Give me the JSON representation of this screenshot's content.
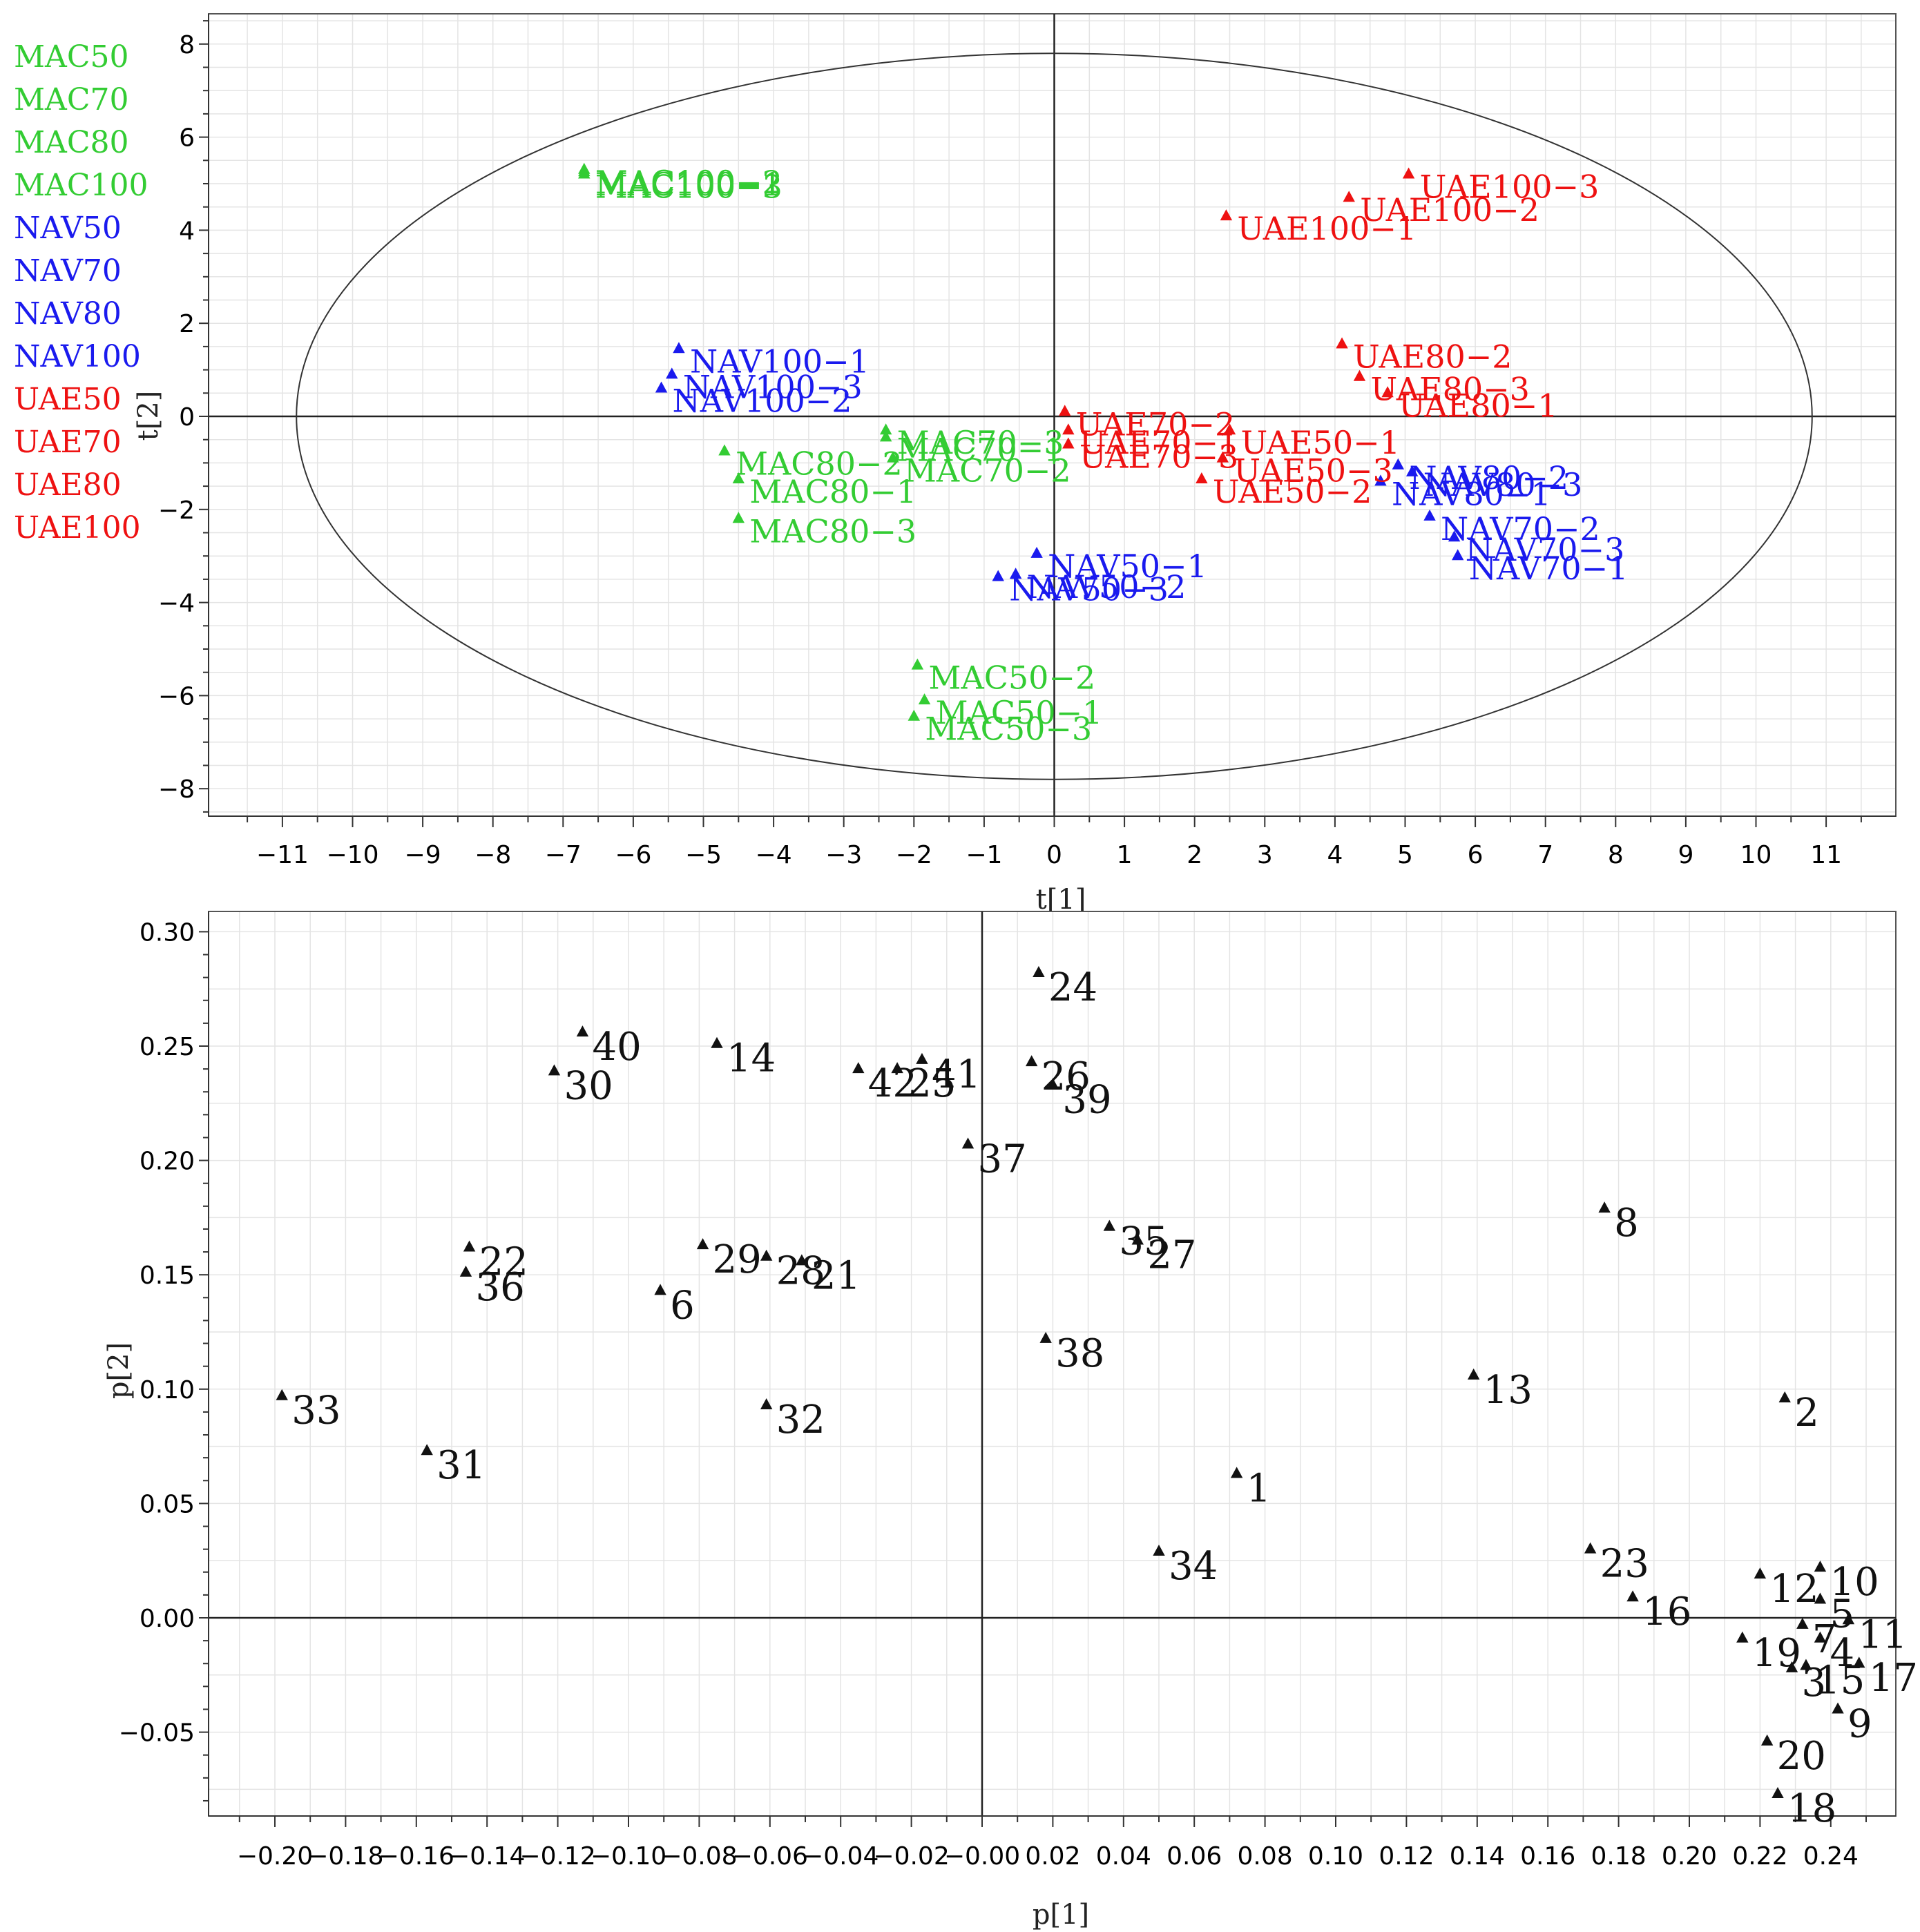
{
  "colors": {
    "MAC": "#33cc33",
    "NAV": "#1a1aee",
    "UAE": "#ee1111",
    "loading": "#111111"
  },
  "legend": [
    {
      "label": "MAC50",
      "group": "MAC"
    },
    {
      "label": "MAC70",
      "group": "MAC"
    },
    {
      "label": "MAC80",
      "group": "MAC"
    },
    {
      "label": "MAC100",
      "group": "MAC"
    },
    {
      "label": "NAV50",
      "group": "NAV"
    },
    {
      "label": "NAV70",
      "group": "NAV"
    },
    {
      "label": "NAV80",
      "group": "NAV"
    },
    {
      "label": "NAV100",
      "group": "NAV"
    },
    {
      "label": "UAE50",
      "group": "UAE"
    },
    {
      "label": "UAE70",
      "group": "UAE"
    },
    {
      "label": "UAE80",
      "group": "UAE"
    },
    {
      "label": "UAE100",
      "group": "UAE"
    }
  ],
  "chart_data": [
    {
      "type": "scatter",
      "panel": "A",
      "title": "",
      "xlabel": "t[1]",
      "ylabel": "t[2]",
      "xlim": [
        -12,
        12
      ],
      "ylim": [
        -8.6,
        8.6
      ],
      "xticks": [
        -11,
        -10,
        -9,
        -8,
        -7,
        -6,
        -5,
        -4,
        -3,
        -2,
        -1,
        0,
        1,
        2,
        3,
        4,
        5,
        6,
        7,
        8,
        9,
        10,
        11
      ],
      "yticks": [
        -8,
        -6,
        -4,
        -2,
        0,
        2,
        4,
        6,
        8
      ],
      "grid": true,
      "ellipse": {
        "rx": 10.8,
        "ry": 7.8
      },
      "points": [
        {
          "label": "MAC100−2",
          "x": -6.7,
          "y": 5.3,
          "group": "MAC"
        },
        {
          "label": "MAC100−1",
          "x": -6.7,
          "y": 5.25,
          "group": "MAC"
        },
        {
          "label": "MAC100−3",
          "x": -6.7,
          "y": 5.2,
          "group": "MAC"
        },
        {
          "label": "MAC70−3",
          "x": -2.4,
          "y": -0.3,
          "group": "MAC"
        },
        {
          "label": "MAC70−1",
          "x": -2.4,
          "y": -0.45,
          "group": "MAC"
        },
        {
          "label": "MAC70−2",
          "x": -2.3,
          "y": -0.9,
          "group": "MAC"
        },
        {
          "label": "MAC80−2",
          "x": -4.7,
          "y": -0.75,
          "group": "MAC"
        },
        {
          "label": "MAC80−1",
          "x": -4.5,
          "y": -1.35,
          "group": "MAC"
        },
        {
          "label": "MAC80−3",
          "x": -4.5,
          "y": -2.2,
          "group": "MAC"
        },
        {
          "label": "MAC50−2",
          "x": -1.95,
          "y": -5.35,
          "group": "MAC"
        },
        {
          "label": "MAC50−1",
          "x": -1.85,
          "y": -6.1,
          "group": "MAC"
        },
        {
          "label": "MAC50−3",
          "x": -2.0,
          "y": -6.45,
          "group": "MAC"
        },
        {
          "label": "NAV100−1",
          "x": -5.35,
          "y": 1.45,
          "group": "NAV"
        },
        {
          "label": "NAV100−3",
          "x": -5.45,
          "y": 0.9,
          "group": "NAV"
        },
        {
          "label": "NAV100−2",
          "x": -5.6,
          "y": 0.6,
          "group": "NAV"
        },
        {
          "label": "NAV50−1",
          "x": -0.25,
          "y": -2.95,
          "group": "NAV"
        },
        {
          "label": "NAV50−2",
          "x": -0.55,
          "y": -3.4,
          "group": "NAV"
        },
        {
          "label": "NAV50−3",
          "x": -0.8,
          "y": -3.45,
          "group": "NAV"
        },
        {
          "label": "NAV80−2",
          "x": 4.9,
          "y": -1.05,
          "group": "NAV"
        },
        {
          "label": "NAV80−1",
          "x": 4.65,
          "y": -1.4,
          "group": "NAV"
        },
        {
          "label": "NAV80−3",
          "x": 5.1,
          "y": -1.2,
          "group": "NAV"
        },
        {
          "label": "NAV70−2",
          "x": 5.35,
          "y": -2.15,
          "group": "NAV"
        },
        {
          "label": "NAV70−3",
          "x": 5.7,
          "y": -2.6,
          "group": "NAV"
        },
        {
          "label": "NAV70−1",
          "x": 5.75,
          "y": -3.0,
          "group": "NAV"
        },
        {
          "label": "UAE100−3",
          "x": 5.05,
          "y": 5.2,
          "group": "UAE"
        },
        {
          "label": "UAE100−2",
          "x": 4.2,
          "y": 4.7,
          "group": "UAE"
        },
        {
          "label": "UAE100−1",
          "x": 2.45,
          "y": 4.3,
          "group": "UAE"
        },
        {
          "label": "UAE80−2",
          "x": 4.1,
          "y": 1.55,
          "group": "UAE"
        },
        {
          "label": "UAE80−3",
          "x": 4.35,
          "y": 0.85,
          "group": "UAE"
        },
        {
          "label": "UAE80−1",
          "x": 4.75,
          "y": 0.5,
          "group": "UAE"
        },
        {
          "label": "UAE70−2",
          "x": 0.15,
          "y": 0.1,
          "group": "UAE"
        },
        {
          "label": "UAE70−1",
          "x": 0.2,
          "y": -0.3,
          "group": "UAE"
        },
        {
          "label": "UAE70−3",
          "x": 0.2,
          "y": -0.6,
          "group": "UAE"
        },
        {
          "label": "UAE50−1",
          "x": 2.5,
          "y": -0.3,
          "group": "UAE"
        },
        {
          "label": "UAE50−3",
          "x": 2.4,
          "y": -0.9,
          "group": "UAE"
        },
        {
          "label": "UAE50−2",
          "x": 2.1,
          "y": -1.35,
          "group": "UAE"
        }
      ]
    },
    {
      "type": "scatter",
      "panel": "B",
      "title": "",
      "xlabel": "p[1]",
      "ylabel": "p[2]",
      "xlim": [
        -0.215,
        0.252
      ],
      "ylim": [
        -0.0835,
        0.305
      ],
      "xticks": [
        -0.2,
        -0.18,
        -0.16,
        -0.14,
        -0.12,
        -0.1,
        -0.08,
        -0.06,
        -0.04,
        -0.02,
        -0.0,
        0.02,
        0.04,
        0.06,
        0.08,
        0.1,
        0.12,
        0.14,
        0.16,
        0.18,
        0.2,
        0.22,
        0.24
      ],
      "xtick_labels": [
        "−0.20",
        "−0.18",
        "−0.16",
        "−0.14",
        "−0.12",
        "−0.10",
        "−0.08",
        "−0.06",
        "−0.04",
        "−0.02",
        "−0.00",
        "0.02",
        "0.04",
        "0.06",
        "0.08",
        "0.10",
        "0.12",
        "0.14",
        "0.16",
        "0.18",
        "0.20",
        "0.22",
        "0.24"
      ],
      "yticks": [
        -0.05,
        0.0,
        0.05,
        0.1,
        0.15,
        0.2,
        0.25,
        0.3
      ],
      "ytick_labels": [
        "−0.05",
        "0.00",
        "0.05",
        "0.10",
        "0.15",
        "0.20",
        "0.25",
        "0.30"
      ],
      "grid": true,
      "points": [
        {
          "label": "1",
          "x": 0.072,
          "y": 0.063
        },
        {
          "label": "2",
          "x": 0.227,
          "y": 0.096
        },
        {
          "label": "3",
          "x": 0.229,
          "y": -0.022
        },
        {
          "label": "4",
          "x": 0.237,
          "y": -0.009
        },
        {
          "label": "5",
          "x": 0.237,
          "y": 0.008
        },
        {
          "label": "7",
          "x": 0.232,
          "y": -0.003
        },
        {
          "label": "9",
          "x": 0.242,
          "y": -0.04
        },
        {
          "label": "6",
          "x": -0.091,
          "y": 0.143
        },
        {
          "label": "8",
          "x": 0.176,
          "y": 0.179
        },
        {
          "label": "10",
          "x": 0.237,
          "y": 0.022
        },
        {
          "label": "11",
          "x": 0.245,
          "y": -0.001
        },
        {
          "label": "12",
          "x": 0.22,
          "y": 0.019
        },
        {
          "label": "13",
          "x": 0.139,
          "y": 0.106
        },
        {
          "label": "14",
          "x": -0.075,
          "y": 0.251
        },
        {
          "label": "15",
          "x": 0.233,
          "y": -0.021
        },
        {
          "label": "16",
          "x": 0.184,
          "y": 0.009
        },
        {
          "label": "17",
          "x": 0.248,
          "y": -0.02
        },
        {
          "label": "18",
          "x": 0.225,
          "y": -0.077
        },
        {
          "label": "19",
          "x": 0.215,
          "y": -0.009
        },
        {
          "label": "20",
          "x": 0.222,
          "y": -0.054
        },
        {
          "label": "21",
          "x": -0.051,
          "y": 0.156
        },
        {
          "label": "22",
          "x": -0.145,
          "y": 0.162
        },
        {
          "label": "23",
          "x": 0.172,
          "y": 0.03
        },
        {
          "label": "24",
          "x": 0.016,
          "y": 0.282
        },
        {
          "label": "25",
          "x": -0.024,
          "y": 0.24
        },
        {
          "label": "26",
          "x": 0.014,
          "y": 0.243
        },
        {
          "label": "27",
          "x": 0.044,
          "y": 0.165
        },
        {
          "label": "28",
          "x": -0.061,
          "y": 0.158
        },
        {
          "label": "29",
          "x": -0.079,
          "y": 0.163
        },
        {
          "label": "30",
          "x": -0.121,
          "y": 0.239
        },
        {
          "label": "31",
          "x": -0.157,
          "y": 0.073
        },
        {
          "label": "32",
          "x": -0.061,
          "y": 0.093
        },
        {
          "label": "33",
          "x": -0.198,
          "y": 0.097
        },
        {
          "label": "34",
          "x": 0.05,
          "y": 0.029
        },
        {
          "label": "35",
          "x": 0.036,
          "y": 0.171
        },
        {
          "label": "36",
          "x": -0.146,
          "y": 0.151
        },
        {
          "label": "37",
          "x": -0.004,
          "y": 0.207
        },
        {
          "label": "38",
          "x": 0.018,
          "y": 0.122
        },
        {
          "label": "39",
          "x": 0.02,
          "y": 0.233
        },
        {
          "label": "40",
          "x": -0.113,
          "y": 0.256
        },
        {
          "label": "41",
          "x": -0.017,
          "y": 0.244
        },
        {
          "label": "42",
          "x": -0.035,
          "y": 0.24
        }
      ]
    }
  ]
}
